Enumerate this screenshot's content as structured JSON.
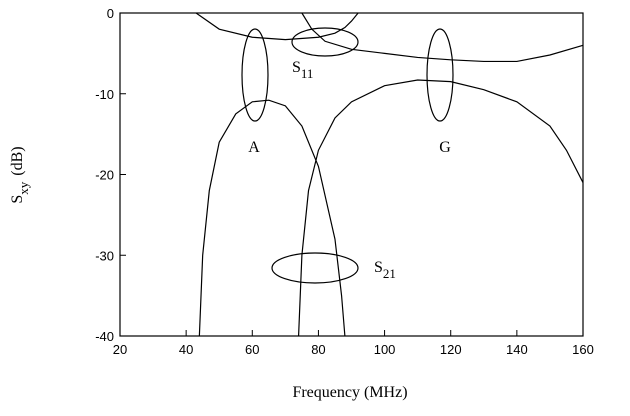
{
  "chart_data": {
    "type": "line",
    "x_label": "Frequency (MHz)",
    "y_label": {
      "text": "S",
      "sub": "xy",
      "unit": "(dB)"
    },
    "xlim": [
      20,
      160
    ],
    "xticks": [
      20,
      40,
      60,
      80,
      100,
      120,
      140,
      160
    ],
    "ylim": [
      -40,
      0
    ],
    "yticks": [
      0,
      -10,
      -20,
      -30,
      -40
    ],
    "annotations": [
      {
        "text": "S",
        "sub": "11"
      },
      "A",
      "G",
      {
        "text": "S",
        "sub": "21"
      }
    ],
    "series": [
      {
        "color": "#000000",
        "x": [
          44,
          45,
          47,
          50,
          55,
          60,
          65,
          70,
          75,
          80,
          85,
          87,
          88
        ],
        "values": [
          -40,
          -30,
          -22,
          -16,
          -12.5,
          -11,
          -10.8,
          -11.5,
          -14,
          -19,
          -28,
          -35,
          -40
        ]
      },
      {
        "color": "#000000",
        "x": [
          74,
          75,
          77,
          80,
          85,
          90,
          100,
          110,
          120,
          130,
          140,
          150,
          155,
          160
        ],
        "values": [
          -40,
          -30,
          -22,
          -17,
          -13,
          -11,
          -9,
          -8.3,
          -8.5,
          -9.5,
          -11,
          -14,
          -17,
          -21
        ]
      },
      {
        "color": "#000000",
        "x": [
          43,
          50,
          60,
          70,
          80,
          85,
          88,
          90,
          92
        ],
        "values": [
          0,
          -2,
          -3,
          -3.3,
          -3,
          -2.5,
          -1.8,
          -1,
          0
        ]
      },
      {
        "color": "#000000",
        "x": [
          75,
          78,
          82,
          90,
          100,
          110,
          120,
          130,
          140,
          150,
          160
        ],
        "values": [
          0,
          -2,
          -3.5,
          -4.5,
          -5,
          -5.5,
          -5.8,
          -6,
          -6,
          -5.2,
          -4
        ]
      }
    ]
  }
}
